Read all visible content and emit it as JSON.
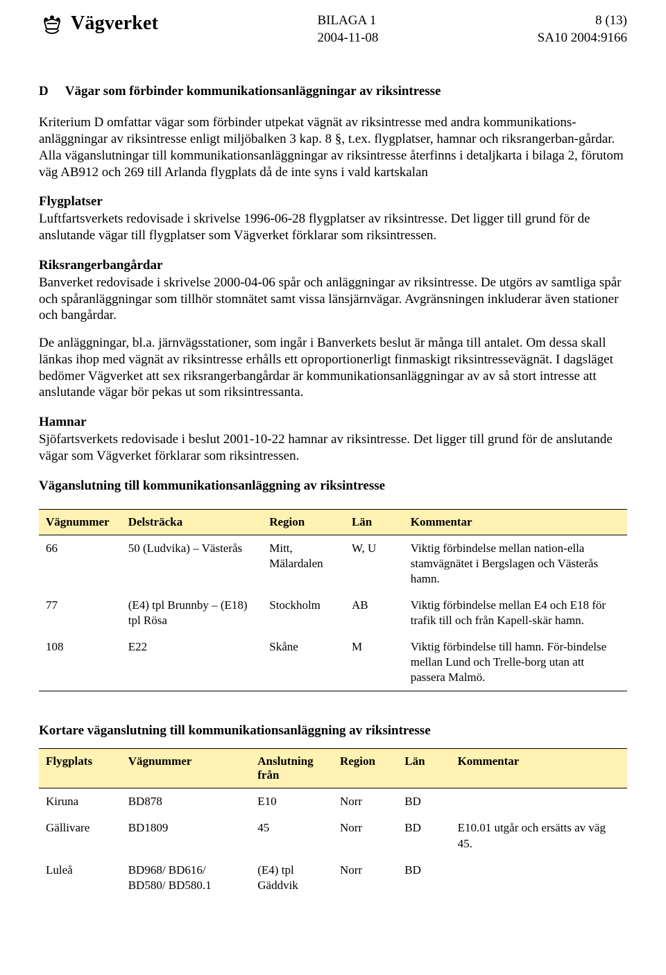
{
  "colors": {
    "header_row_bg": "#fff2b3",
    "border": "#000000",
    "text": "#000000",
    "background": "#ffffff"
  },
  "header": {
    "org_name": "Vägverket",
    "center_line1": "BILAGA 1",
    "center_line2": "2004-11-08",
    "right_line1": "8 (13)",
    "right_line2": "SA10 2004:9166"
  },
  "section_d": {
    "letter": "D",
    "title": "Vägar som förbinder kommunikationsanläggningar av riksintresse",
    "para1": "Kriterium D omfattar vägar som förbinder utpekat vägnät av riksintresse med andra kommunikations-anläggningar av riksintresse enligt miljöbalken 3 kap. 8 §, t.ex. flygplatser, hamnar och riksrangerban-gårdar. Alla väganslutningar till kommunikationsanläggningar av riksintresse återfinns i detaljkarta i bilaga 2, förutom väg AB912 och 269 till Arlanda flygplats då de inte syns i vald kartskalan"
  },
  "flygplatser": {
    "head": "Flygplatser",
    "body": "Luftfartsverkets redovisade i skrivelse 1996-06-28 flygplatser av riksintresse. Det ligger till grund för de anslutande vägar till flygplatser som Vägverket förklarar som riksintressen."
  },
  "riksranger": {
    "head": "Riksrangerbangårdar",
    "body1": "Banverket redovisade i skrivelse 2000-04-06 spår och anläggningar av riksintresse. De utgörs av samtliga spår och spåranläggningar som tillhör stomnätet samt vissa länsjärnvägar. Avgränsningen inkluderar även stationer och bangårdar.",
    "body2": "De anläggningar, bl.a. järnvägsstationer, som ingår i Banverkets beslut är många till antalet. Om dessa skall länkas ihop med vägnät av riksintresse erhålls ett oproportionerligt finmaskigt riksintressevägnät. I dagsläget bedömer Vägverket att sex riksrangerbangårdar är kommunikationsanläggningar av av så stort intresse att anslutande vägar bör pekas ut som riksintressanta."
  },
  "hamnar": {
    "head": "Hamnar",
    "body": "Sjöfartsverkets redovisade i beslut 2001-10-22 hamnar av riksintresse. Det ligger till grund för de anslutande vägar som Vägverket förklarar som riksintressen."
  },
  "table1": {
    "title": "Väganslutning till kommunikationsanläggning av riksintresse",
    "columns": [
      "Vägnummer",
      "Delsträcka",
      "Region",
      "Län",
      "Kommentar"
    ],
    "col_widths": [
      "14%",
      "24%",
      "14%",
      "10%",
      "38%"
    ],
    "rows": [
      [
        "66",
        "50 (Ludvika) – Västerås",
        "Mitt, Mälardalen",
        "W, U",
        "Viktig förbindelse mellan nation-ella stamvägnätet i Bergslagen och Västerås hamn."
      ],
      [
        "77",
        "(E4) tpl Brunnby – (E18) tpl Rösa",
        "Stockholm",
        "AB",
        "Viktig förbindelse mellan E4 och E18 för trafik till och från Kapell-skär hamn."
      ],
      [
        "108",
        "E22",
        "Skåne",
        "M",
        "Viktig förbindelse till hamn. För-bindelse mellan Lund och Trelle-borg utan att passera Malmö."
      ]
    ]
  },
  "table2": {
    "title": "Kortare väganslutning till kommunikationsanläggning av riksintresse",
    "columns": [
      "Flygplats",
      "Vägnummer",
      "Anslutning från",
      "Region",
      "Län",
      "Kommentar"
    ],
    "col_widths": [
      "14%",
      "22%",
      "14%",
      "11%",
      "9%",
      "30%"
    ],
    "rows": [
      [
        "Kiruna",
        "BD878",
        "E10",
        "Norr",
        "BD",
        ""
      ],
      [
        "Gällivare",
        "BD1809",
        "45",
        "Norr",
        "BD",
        "E10.01 utgår och ersätts av väg 45."
      ],
      [
        "Luleå",
        "BD968/ BD616/ BD580/ BD580.1",
        "(E4) tpl Gäddvik",
        "Norr",
        "BD",
        ""
      ]
    ]
  }
}
